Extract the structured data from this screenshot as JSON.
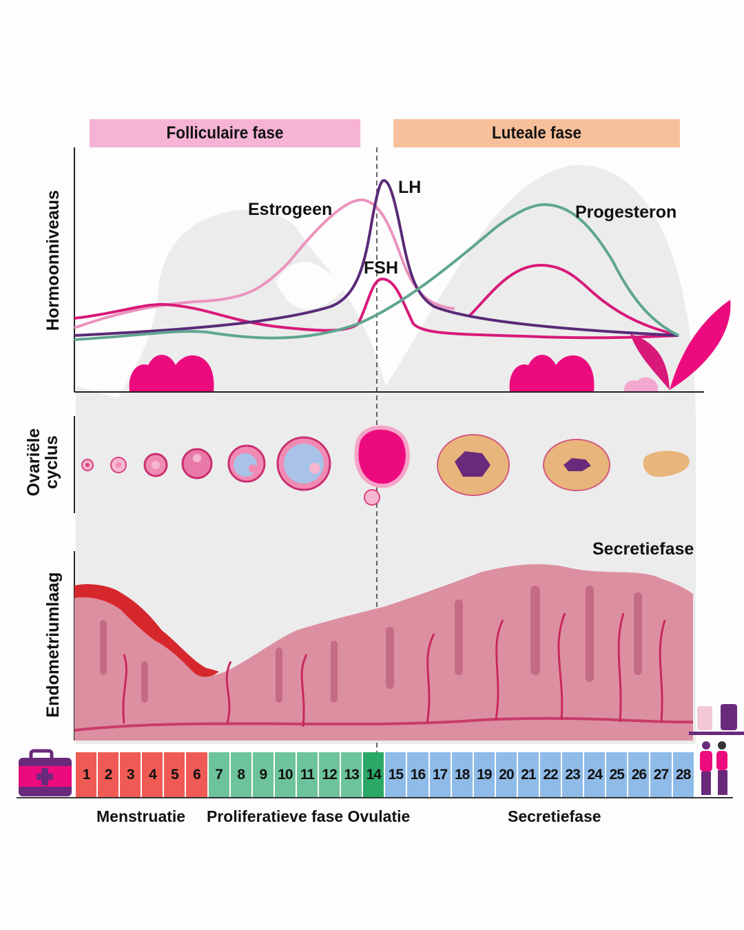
{
  "phases": {
    "follicular": "Folliculaire fase",
    "luteal": "Luteale fase"
  },
  "hormones": {
    "estrogen": "Estrogeen",
    "lh": "LH",
    "fsh": "FSH",
    "progesterone": "Progesteron"
  },
  "axis_labels": {
    "hormone_levels": "Hormoonniveaus",
    "ovarian_line1": "Ovariële",
    "ovarian_line2": "cyclus",
    "endometrium": "Endometriumlaag"
  },
  "secretory_top": "Secretiefase",
  "days": [
    {
      "n": "1",
      "phase": "menstruation"
    },
    {
      "n": "2",
      "phase": "menstruation"
    },
    {
      "n": "3",
      "phase": "menstruation"
    },
    {
      "n": "4",
      "phase": "menstruation"
    },
    {
      "n": "5",
      "phase": "menstruation"
    },
    {
      "n": "6",
      "phase": "menstruation"
    },
    {
      "n": "7",
      "phase": "proliferative"
    },
    {
      "n": "8",
      "phase": "proliferative"
    },
    {
      "n": "9",
      "phase": "proliferative"
    },
    {
      "n": "10",
      "phase": "proliferative"
    },
    {
      "n": "11",
      "phase": "proliferative"
    },
    {
      "n": "12",
      "phase": "proliferative"
    },
    {
      "n": "13",
      "phase": "proliferative"
    },
    {
      "n": "14",
      "phase": "ovulation"
    },
    {
      "n": "15",
      "phase": "secretory"
    },
    {
      "n": "16",
      "phase": "secretory"
    },
    {
      "n": "17",
      "phase": "secretory"
    },
    {
      "n": "18",
      "phase": "secretory"
    },
    {
      "n": "19",
      "phase": "secretory"
    },
    {
      "n": "20",
      "phase": "secretory"
    },
    {
      "n": "21",
      "phase": "secretory"
    },
    {
      "n": "22",
      "phase": "secretory"
    },
    {
      "n": "23",
      "phase": "secretory"
    },
    {
      "n": "24",
      "phase": "secretory"
    },
    {
      "n": "25",
      "phase": "secretory"
    },
    {
      "n": "26",
      "phase": "secretory"
    },
    {
      "n": "27",
      "phase": "secretory"
    },
    {
      "n": "28",
      "phase": "secretory"
    }
  ],
  "phase_colors": {
    "menstruation": "#ef5b54",
    "proliferative": "#6dc49c",
    "ovulation": "#2aa866",
    "secretory": "#8fbbe8"
  },
  "bottom_labels": {
    "menstruation": "Menstruatie",
    "proliferative_ovulation": "Proliferatieve fase Ovulatie",
    "secretory": "Secretiefase"
  },
  "colors": {
    "estrogen": "#eb93bd",
    "lh": "#5a2a78",
    "fsh": "#d8197a",
    "progesterone": "#5fa592"
  }
}
